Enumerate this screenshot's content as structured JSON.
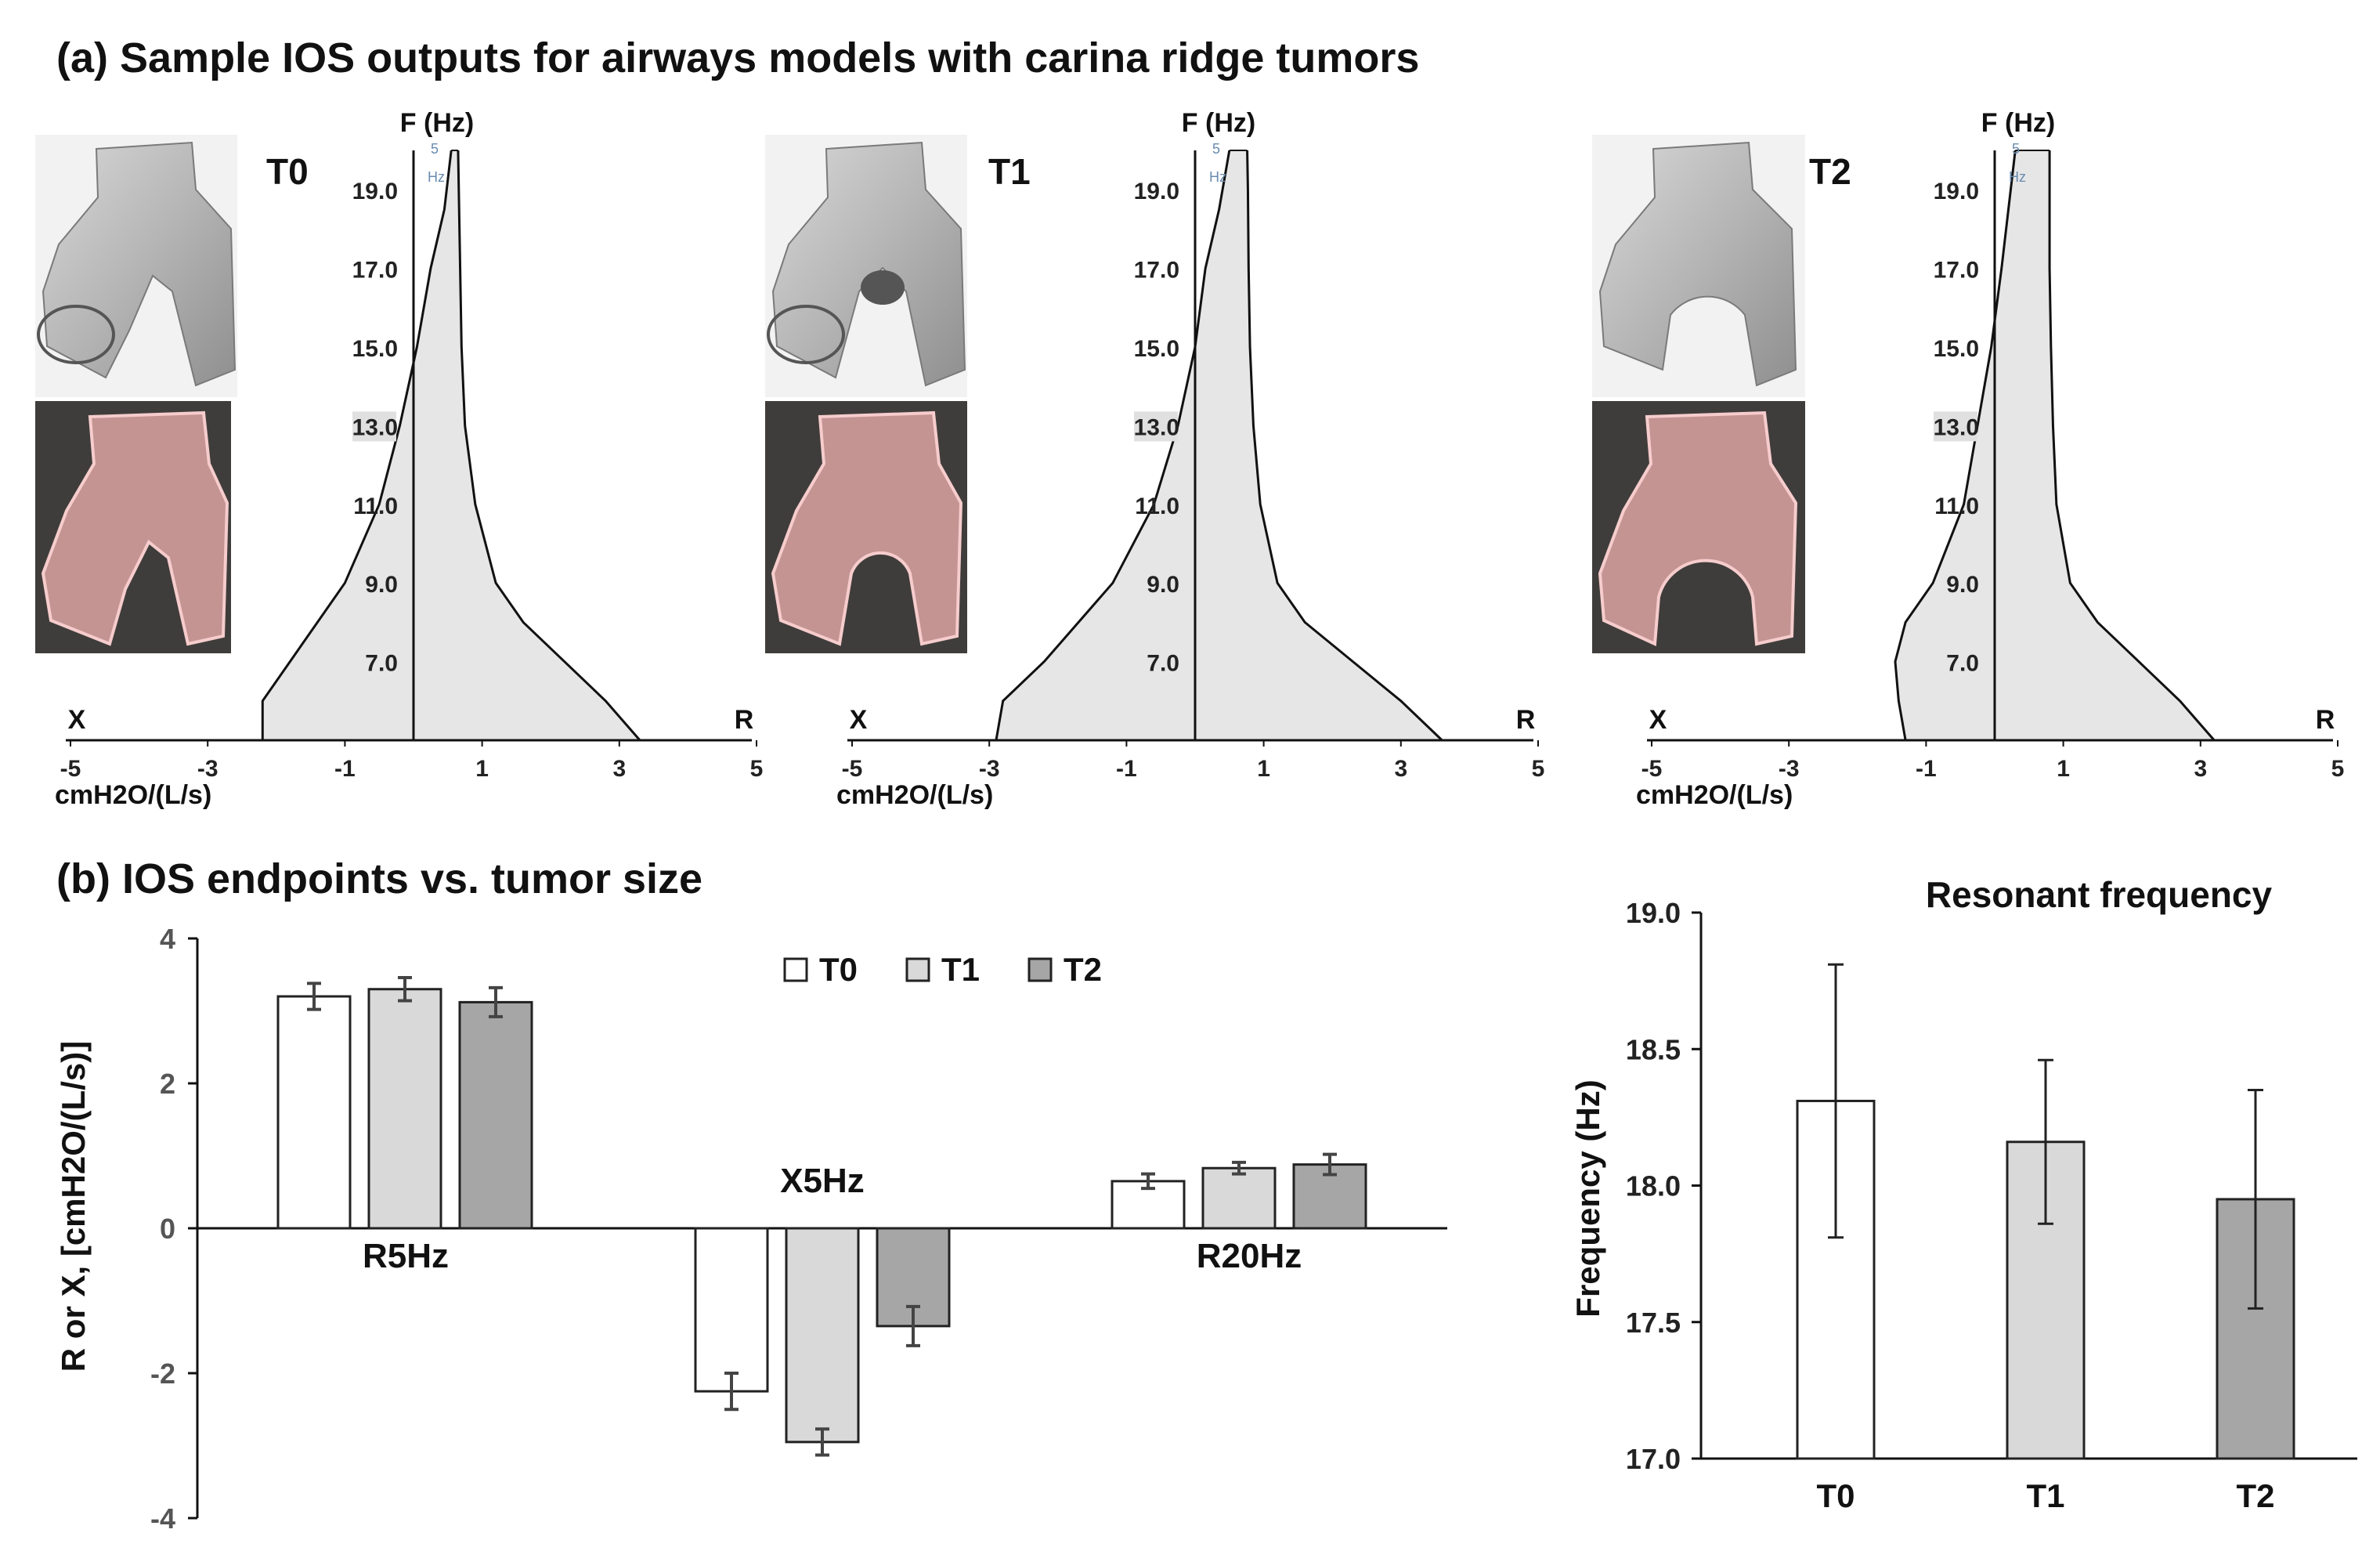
{
  "panel_a": {
    "title": "(a) Sample IOS outputs for airways models with carina ridge tumors",
    "f_axis_label": "F (Hz)",
    "x_label": "X",
    "r_label": "R",
    "unit_label": "cmH2O/(L/s)",
    "hz_mark": "Hz",
    "five_mark": "5",
    "f_ticks": [
      "19.0",
      "17.0",
      "15.0",
      "13.0",
      "11.0",
      "9.0",
      "7.0"
    ],
    "x_ticks": [
      "-5",
      "-3",
      "-1",
      "1",
      "3",
      "5"
    ],
    "models": [
      {
        "tag": "T0"
      },
      {
        "tag": "T1"
      },
      {
        "tag": "T2"
      }
    ],
    "colors": {
      "fill": "#e6e6e6",
      "surface": "#a9a9a9",
      "render_bg": "#3f3d3b",
      "render_wall": "#f2b2b2"
    }
  },
  "chart_data": [
    {
      "type": "area",
      "id": "ios_T0",
      "title": "T0",
      "xlabel": "cmH2O/(L/s)",
      "ylabel": "F (Hz)",
      "xlim": [
        -5,
        5
      ],
      "ylim": [
        5,
        20
      ],
      "x_series": {
        "name": "X",
        "f": [
          5.0,
          6.0,
          7.0,
          9.0,
          11.0,
          13.0,
          15.0,
          17.0,
          18.5,
          20.0
        ],
        "v": [
          -2.2,
          -2.2,
          -1.8,
          -1.0,
          -0.5,
          -0.2,
          0.05,
          0.25,
          0.45,
          0.55
        ]
      },
      "r_series": {
        "name": "R",
        "f": [
          5.0,
          6.0,
          7.0,
          8.0,
          9.0,
          11.0,
          13.0,
          15.0,
          17.0,
          19.0,
          20.0
        ],
        "v": [
          3.3,
          2.8,
          2.2,
          1.6,
          1.2,
          0.9,
          0.75,
          0.7,
          0.68,
          0.66,
          0.65
        ]
      }
    },
    {
      "type": "area",
      "id": "ios_T1",
      "title": "T1",
      "xlabel": "cmH2O/(L/s)",
      "ylabel": "F (Hz)",
      "xlim": [
        -5,
        5
      ],
      "ylim": [
        5,
        20
      ],
      "x_series": {
        "name": "X",
        "f": [
          5.0,
          6.0,
          7.0,
          9.0,
          11.0,
          13.0,
          15.0,
          17.0,
          18.5,
          20.0
        ],
        "v": [
          -2.9,
          -2.8,
          -2.2,
          -1.2,
          -0.6,
          -0.25,
          0.0,
          0.15,
          0.35,
          0.5
        ]
      },
      "r_series": {
        "name": "R",
        "f": [
          5.0,
          6.0,
          7.0,
          8.0,
          9.0,
          11.0,
          13.0,
          15.0,
          17.0,
          19.0,
          20.0
        ],
        "v": [
          3.6,
          3.0,
          2.3,
          1.6,
          1.2,
          0.95,
          0.85,
          0.8,
          0.78,
          0.77,
          0.76
        ]
      }
    },
    {
      "type": "area",
      "id": "ios_T2",
      "title": "T2",
      "xlabel": "cmH2O/(L/s)",
      "ylabel": "F (Hz)",
      "xlim": [
        -5,
        5
      ],
      "ylim": [
        5,
        20
      ],
      "x_series": {
        "name": "X",
        "f": [
          5.0,
          6.0,
          7.0,
          8.0,
          9.0,
          11.0,
          13.0,
          15.0,
          17.0,
          18.5,
          20.0
        ],
        "v": [
          -1.3,
          -1.4,
          -1.45,
          -1.3,
          -0.9,
          -0.45,
          -0.25,
          -0.05,
          0.1,
          0.2,
          0.3
        ]
      },
      "r_series": {
        "name": "R",
        "f": [
          5.0,
          6.0,
          7.0,
          8.0,
          9.0,
          11.0,
          13.0,
          15.0,
          17.0,
          19.0,
          20.0
        ],
        "v": [
          3.2,
          2.7,
          2.1,
          1.5,
          1.1,
          0.9,
          0.85,
          0.82,
          0.8,
          0.8,
          0.8
        ]
      }
    },
    {
      "type": "bar",
      "id": "ios_endpoints",
      "title": "(b) IOS endpoints vs. tumor size",
      "xlabel": "",
      "ylabel": "R or X, [cmH2O/(L/s)]",
      "ylim": [
        -4,
        4
      ],
      "yticks": [
        "4",
        "2",
        "0",
        "-2",
        "-4"
      ],
      "categories": [
        "R5Hz",
        "X5Hz",
        "R20Hz"
      ],
      "series": [
        {
          "name": "T0",
          "color": "#ffffff",
          "values": [
            3.2,
            -2.25,
            0.65
          ],
          "errors": [
            0.18,
            0.25,
            0.1
          ]
        },
        {
          "name": "T1",
          "color": "#d9d9d9",
          "values": [
            3.3,
            -2.95,
            0.83
          ],
          "errors": [
            0.16,
            0.18,
            0.08
          ]
        },
        {
          "name": "T2",
          "color": "#a6a6a6",
          "values": [
            3.12,
            -1.35,
            0.88
          ],
          "errors": [
            0.2,
            0.27,
            0.14
          ]
        }
      ]
    },
    {
      "type": "bar",
      "id": "resonant_frequency",
      "title": "Resonant frequency",
      "xlabel": "",
      "ylabel": "Frequency (Hz)",
      "ylim": [
        17.0,
        19.0
      ],
      "yticks": [
        "19.0",
        "18.5",
        "18.0",
        "17.5",
        "17.0"
      ],
      "categories": [
        "T0",
        "T1",
        "T2"
      ],
      "colors": [
        "#ffffff",
        "#d9d9d9",
        "#a6a6a6"
      ],
      "values": [
        18.31,
        18.16,
        17.95
      ],
      "errors": [
        0.5,
        0.3,
        0.4
      ]
    }
  ]
}
